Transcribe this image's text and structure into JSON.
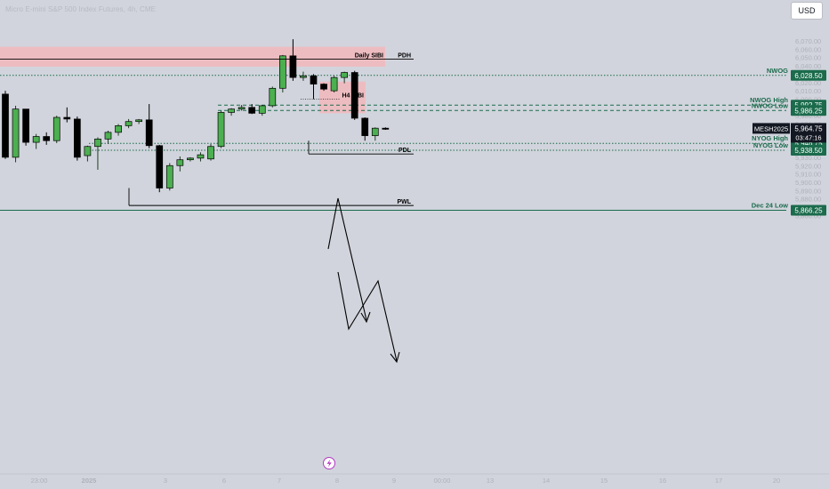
{
  "header": {
    "title": "Micro E-mini S&P 500 Index Futures, 4h, CME",
    "currency_button": "USD"
  },
  "colors": {
    "background": "#d1d4dc",
    "bull": "#4caf50",
    "bear": "#000000",
    "zone": "#f2b7bc",
    "level": "#1b6b4c",
    "label_bg": "#1b6b4c",
    "current_label_bg": "#131722"
  },
  "chart_data": {
    "type": "candlestick",
    "symbol": "MESH2025",
    "timeframe": "4h",
    "price_axis": {
      "ticks": [
        "6,070.00",
        "6,060.00",
        "6,050.00",
        "6,040.00",
        "6,030.00",
        "6,020.00",
        "6,010.00",
        "6,000.00",
        "5,990.00",
        "5,980.00",
        "5,970.00",
        "5,960.00",
        "5,950.00",
        "5,940.00",
        "5,930.00",
        "5,920.00",
        "5,910.00",
        "5,900.00",
        "5,890.00",
        "5,880.00",
        "5,870.00",
        "5,860.00"
      ],
      "range": [
        5855,
        6082
      ]
    },
    "time_axis": {
      "ticks": [
        "23:00",
        "2025",
        "3",
        "6",
        "7",
        "8",
        "9",
        "00:00",
        "13",
        "14",
        "15",
        "16",
        "17",
        "20"
      ]
    },
    "candles": [
      {
        "o": 6006,
        "h": 6010,
        "c": 5930,
        "l": 5928
      },
      {
        "o": 5930,
        "h": 5992,
        "c": 5988,
        "l": 5924
      },
      {
        "o": 5988,
        "h": 5988,
        "c": 5948,
        "l": 5944
      },
      {
        "o": 5948,
        "h": 5958,
        "c": 5955,
        "l": 5940
      },
      {
        "o": 5955,
        "h": 5960,
        "c": 5950,
        "l": 5945
      },
      {
        "o": 5950,
        "h": 5980,
        "c": 5978,
        "l": 5947
      },
      {
        "o": 5978,
        "h": 5990,
        "c": 5976,
        "l": 5972
      },
      {
        "o": 5976,
        "h": 5979,
        "c": 5930,
        "l": 5926
      },
      {
        "o": 5932,
        "h": 5944,
        "c": 5943,
        "l": 5925
      },
      {
        "o": 5943,
        "h": 5954,
        "c": 5952,
        "l": 5915
      },
      {
        "o": 5952,
        "h": 5962,
        "c": 5960,
        "l": 5946
      },
      {
        "o": 5960,
        "h": 5970,
        "c": 5968,
        "l": 5956
      },
      {
        "o": 5968,
        "h": 5976,
        "c": 5973,
        "l": 5965
      },
      {
        "o": 5973,
        "h": 5976,
        "c": 5975,
        "l": 5970
      },
      {
        "o": 5975,
        "h": 5994,
        "c": 5944,
        "l": 5941
      },
      {
        "o": 5944,
        "h": 5945,
        "c": 5893,
        "l": 5888
      },
      {
        "o": 5893,
        "h": 5923,
        "c": 5920,
        "l": 5890
      },
      {
        "o": 5920,
        "h": 5931,
        "c": 5927,
        "l": 5913
      },
      {
        "o": 5927,
        "h": 5930,
        "c": 5929,
        "l": 5925
      },
      {
        "o": 5929,
        "h": 5936,
        "c": 5933,
        "l": 5925
      },
      {
        "o": 5928,
        "h": 5946,
        "c": 5943,
        "l": 5926
      },
      {
        "o": 5943,
        "h": 5986,
        "c": 5984,
        "l": 5941
      },
      {
        "o": 5984,
        "h": 5989,
        "c": 5988,
        "l": 5980
      },
      {
        "o": 5988,
        "h": 5993,
        "c": 5990,
        "l": 5986
      },
      {
        "o": 5990,
        "h": 5994,
        "c": 5983,
        "l": 5982
      },
      {
        "o": 5983,
        "h": 5993,
        "c": 5992,
        "l": 5980
      },
      {
        "o": 5992,
        "h": 6015,
        "c": 6013,
        "l": 5990
      },
      {
        "o": 6013,
        "h": 6053,
        "c": 6052,
        "l": 6008
      },
      {
        "o": 6052,
        "h": 6072,
        "c": 6026,
        "l": 6022
      },
      {
        "o": 6026,
        "h": 6033,
        "c": 6028,
        "l": 6022
      },
      {
        "o": 6028,
        "h": 6030,
        "c": 6018,
        "l": 6000
      },
      {
        "o": 6018,
        "h": 6019,
        "c": 6012,
        "l": 6010
      },
      {
        "o": 6010,
        "h": 6028,
        "c": 6026,
        "l": 6008
      },
      {
        "o": 6026,
        "h": 6033,
        "c": 6032,
        "l": 6019
      },
      {
        "o": 6032,
        "h": 6034,
        "c": 5977,
        "l": 5975
      },
      {
        "o": 5977,
        "h": 5978,
        "c": 5956,
        "l": 5950
      },
      {
        "o": 5956,
        "h": 5966,
        "c": 5965,
        "l": 5950
      },
      {
        "o": 5965,
        "h": 5966,
        "c": 5964,
        "l": 5963
      }
    ],
    "zones": [
      {
        "name": "Daily SIBI",
        "from": 6063,
        "to": 6039,
        "start": 0,
        "end": 35
      },
      {
        "name": "H4 SIBI",
        "from": 6021,
        "to": 5983,
        "start": 31,
        "end": 34
      }
    ],
    "levels": [
      {
        "label": "NWOG",
        "price": 6028.5,
        "price_label": "6,028.50",
        "style": "dotted"
      },
      {
        "label": "NWOG High",
        "price": 5992.75,
        "price_label": "5,992.75",
        "style": "dashed"
      },
      {
        "label": "NWOG Low",
        "price": 5986.25,
        "price_label": "5,986.25",
        "style": "dashed"
      },
      {
        "label": "NYOG High",
        "price": 5946.75,
        "price_label": "5,946.75",
        "style": "dotted"
      },
      {
        "label": "NYOG Low",
        "price": 5938.5,
        "price_label": "5,938.50",
        "style": "dotted"
      },
      {
        "label": "Dec 24 Low",
        "price": 5866.25,
        "price_label": "5,866.25",
        "style": "solid"
      }
    ],
    "rays": [
      {
        "label": "Daily SIBI",
        "price": 6048,
        "from": 0,
        "to": 36
      },
      {
        "label": "PDH",
        "price": 6048,
        "from": 0,
        "to": 37
      },
      {
        "label": "H4 SIBI",
        "price": 6000,
        "from": 32,
        "to": 34
      },
      {
        "label": "PDL",
        "price": 5934,
        "from": 33,
        "to": 37
      },
      {
        "label": "PWL",
        "price": 5872,
        "from": 16,
        "to": 37
      }
    ],
    "current": {
      "symbol": "MESH2025",
      "price_label": "5,964.75",
      "countdown": "03:47:16",
      "price": 5964.75
    }
  }
}
